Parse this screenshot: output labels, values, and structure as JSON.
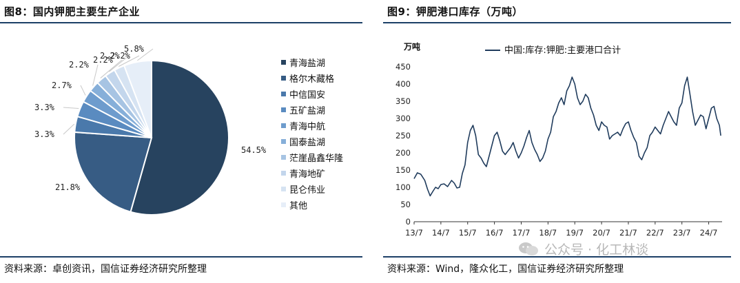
{
  "left": {
    "title": "图8：国内钾肥主要生产企业",
    "source": "资料来源：卓创资讯，国信证券经济研究所整理"
  },
  "right": {
    "title": "图9：钾肥港口库存（万吨）",
    "source": "资料来源：Wind，隆众化工，国信证券经济研究所整理"
  },
  "watermark": "公众号 · 化工林谈",
  "chart_data": [
    {
      "type": "pie",
      "title": "图8：国内钾肥主要生产企业",
      "legend_position": "right",
      "slices": [
        {
          "name": "青海盐湖",
          "value": 54.5,
          "label": "54.5%",
          "color": "#27435f"
        },
        {
          "name": "格尔木藏格",
          "value": 21.8,
          "label": "21.8%",
          "color": "#375c84"
        },
        {
          "name": "中信国安",
          "value": 3.3,
          "label": "3.3%",
          "color": "#4a79ab"
        },
        {
          "name": "五矿盐湖",
          "value": 3.3,
          "label": "3.3%",
          "color": "#5a8bc0"
        },
        {
          "name": "青海中航",
          "value": 2.7,
          "label": "2.7%",
          "color": "#6e9ccd"
        },
        {
          "name": "国泰盐湖",
          "value": 2.2,
          "label": "2.2%",
          "color": "#86afd9"
        },
        {
          "name": "茫崖晶鑫华隆",
          "value": 2.2,
          "label": "2.2%",
          "color": "#a7c4e3"
        },
        {
          "name": "青海地矿",
          "value": 2.2,
          "label": "2.2%",
          "color": "#c3d6ec"
        },
        {
          "name": "昆仑伟业",
          "value": 2.2,
          "label": "2.2%",
          "color": "#d6e3f2"
        },
        {
          "name": "其他",
          "value": 5.8,
          "label": "5.8%",
          "color": "#e6eef8"
        }
      ]
    },
    {
      "type": "line",
      "title": "图9：钾肥港口库存（万吨）",
      "ylabel": "万吨",
      "ylim": [
        0,
        450
      ],
      "yticks": [
        0,
        50,
        100,
        150,
        200,
        250,
        300,
        350,
        400,
        450
      ],
      "xlim": [
        2013.5,
        2025.0
      ],
      "xticks": [
        {
          "label": "13/7",
          "x": 2013.5
        },
        {
          "label": "14/7",
          "x": 2014.5
        },
        {
          "label": "15/7",
          "x": 2015.5
        },
        {
          "label": "16/7",
          "x": 2016.5
        },
        {
          "label": "17/7",
          "x": 2017.5
        },
        {
          "label": "18/7",
          "x": 2018.5
        },
        {
          "label": "19/7",
          "x": 2019.5
        },
        {
          "label": "20/7",
          "x": 2020.5
        },
        {
          "label": "21/7",
          "x": 2021.5
        },
        {
          "label": "22/7",
          "x": 2022.5
        },
        {
          "label": "23/7",
          "x": 2023.5
        },
        {
          "label": "24/7",
          "x": 2024.5
        }
      ],
      "grid": false,
      "legend_position": "top",
      "series": [
        {
          "name": "中国:库存:钾肥:主要港口合计",
          "color": "#1f3b5c",
          "x": [
            2013.5,
            2013.62,
            2013.75,
            2013.9,
            2014.0,
            2014.1,
            2014.2,
            2014.3,
            2014.4,
            2014.5,
            2014.62,
            2014.75,
            2014.9,
            2015.0,
            2015.1,
            2015.2,
            2015.3,
            2015.4,
            2015.5,
            2015.6,
            2015.7,
            2015.8,
            2015.9,
            2016.0,
            2016.1,
            2016.2,
            2016.3,
            2016.4,
            2016.5,
            2016.6,
            2016.7,
            2016.8,
            2016.9,
            2017.0,
            2017.1,
            2017.2,
            2017.3,
            2017.4,
            2017.5,
            2017.6,
            2017.7,
            2017.8,
            2017.9,
            2018.0,
            2018.1,
            2018.2,
            2018.3,
            2018.4,
            2018.5,
            2018.6,
            2018.7,
            2018.8,
            2018.9,
            2019.0,
            2019.1,
            2019.2,
            2019.3,
            2019.4,
            2019.5,
            2019.6,
            2019.7,
            2019.8,
            2019.9,
            2020.0,
            2020.1,
            2020.2,
            2020.3,
            2020.4,
            2020.5,
            2020.6,
            2020.7,
            2020.8,
            2020.9,
            2021.0,
            2021.1,
            2021.2,
            2021.3,
            2021.4,
            2021.5,
            2021.6,
            2021.7,
            2021.8,
            2021.9,
            2022.0,
            2022.1,
            2022.2,
            2022.3,
            2022.4,
            2022.5,
            2022.6,
            2022.7,
            2022.8,
            2022.9,
            2023.0,
            2023.1,
            2023.2,
            2023.3,
            2023.4,
            2023.5,
            2023.6,
            2023.7,
            2023.8,
            2023.9,
            2024.0,
            2024.1,
            2024.2,
            2024.3,
            2024.4,
            2024.5,
            2024.6,
            2024.7,
            2024.8,
            2024.9,
            2024.95
          ],
          "y": [
            125,
            142,
            138,
            120,
            95,
            75,
            88,
            100,
            96,
            108,
            110,
            102,
            120,
            112,
            98,
            100,
            140,
            165,
            230,
            265,
            280,
            250,
            195,
            185,
            170,
            160,
            190,
            220,
            250,
            260,
            235,
            205,
            195,
            205,
            215,
            230,
            205,
            185,
            200,
            220,
            245,
            265,
            230,
            210,
            195,
            175,
            185,
            205,
            240,
            260,
            305,
            320,
            345,
            360,
            340,
            380,
            395,
            420,
            400,
            360,
            340,
            350,
            370,
            360,
            330,
            310,
            280,
            265,
            290,
            280,
            275,
            240,
            250,
            255,
            260,
            250,
            270,
            285,
            290,
            265,
            245,
            230,
            190,
            180,
            200,
            215,
            250,
            260,
            275,
            265,
            255,
            280,
            300,
            320,
            305,
            290,
            280,
            330,
            345,
            395,
            420,
            370,
            320,
            280,
            295,
            310,
            305,
            270,
            300,
            330,
            335,
            300,
            280,
            250
          ]
        }
      ]
    }
  ]
}
